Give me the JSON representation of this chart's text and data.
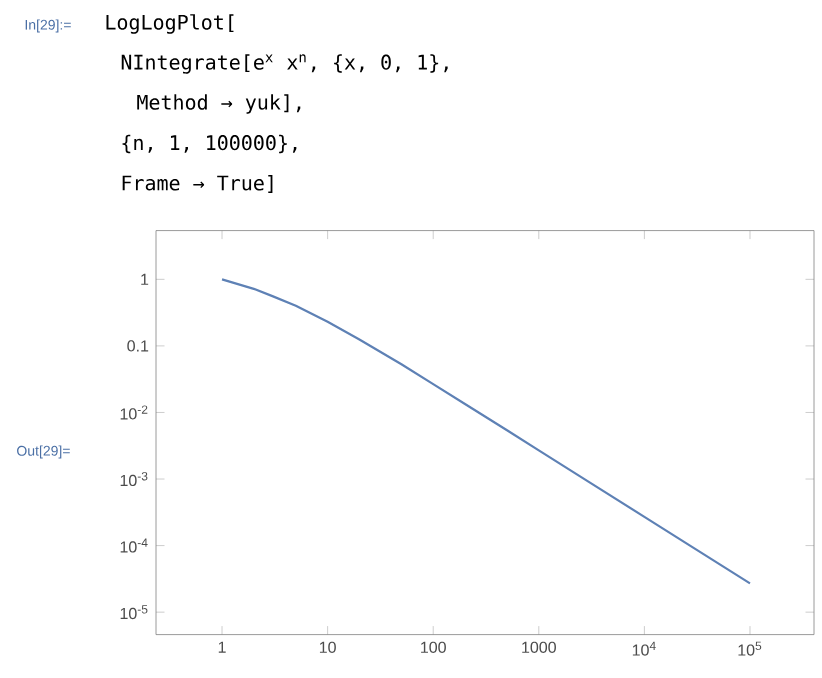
{
  "chart_data": {
    "type": "line",
    "log": "xy",
    "x": [
      1,
      2,
      3,
      5,
      10,
      20,
      50,
      100,
      200,
      500,
      1000,
      3000,
      10000,
      30000,
      100000
    ],
    "series": [
      {
        "color": "#5e81b5",
        "values": [
          1,
          0.72,
          0.56,
          0.4,
          0.23,
          0.125,
          0.053,
          0.0267,
          0.0134,
          0.0054,
          0.0027,
          0.0009,
          0.00027,
          9e-05,
          2.7e-05
        ]
      }
    ],
    "xlim": [
      0.237,
      404000
    ],
    "ylim": [
      4.6e-06,
      5.4
    ],
    "xticks": [
      1,
      10,
      100,
      1000,
      {
        "value": 10000,
        "label": "10$^{4}$"
      },
      {
        "value": 100000,
        "label": "10$^{5}$"
      }
    ],
    "yticks": [
      1,
      0.1,
      {
        "value": 0.01,
        "label": "10$^{-2}$"
      },
      {
        "value": 0.001,
        "label": "10$^{-3}$"
      },
      {
        "value": 0.0001,
        "label": "10$^{-4}$"
      },
      {
        "value": 1e-05,
        "label": "10$^{-5}$"
      }
    ],
    "annotations": [
      "In[29]:=",
      "LogLogPlot[",
      "NIntegrate[e$^{x}$ x$^{n}$, {x, 0, 1},",
      "Method → yuk],",
      "{n, 1, 100000},",
      "Frame → True]",
      "Out[29]="
    ]
  }
}
